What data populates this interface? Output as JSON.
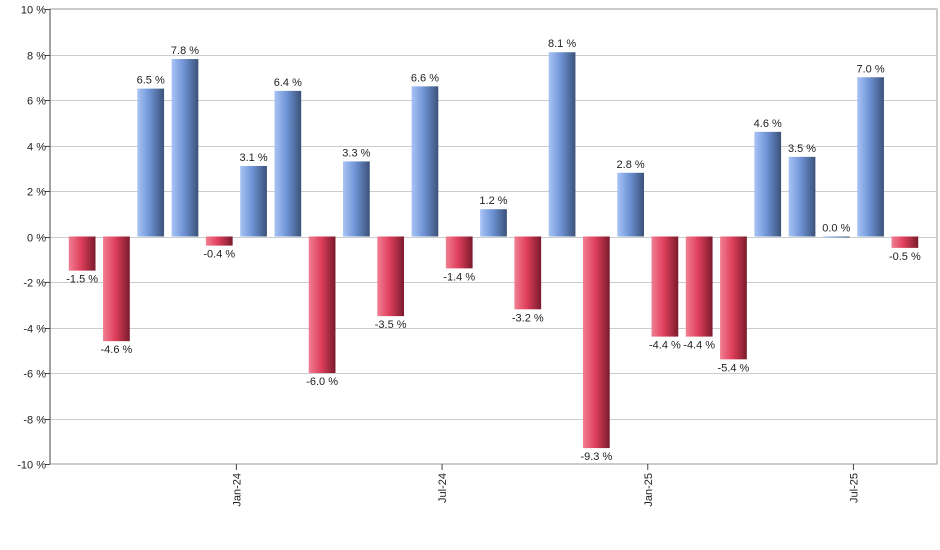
{
  "chart_data": {
    "type": "bar",
    "title": "",
    "xlabel": "",
    "ylabel": "",
    "ylim": [
      -10,
      10
    ],
    "yticks": [
      10,
      8,
      6,
      4,
      2,
      0,
      -2,
      -4,
      -6,
      -8,
      -10
    ],
    "ytick_suffix": " %",
    "grid": true,
    "legend": "none",
    "x_tick_labels": [
      {
        "label": "Jan-24",
        "after_bar_index": 4
      },
      {
        "label": "Jul-24",
        "after_bar_index": 10
      },
      {
        "label": "Jan-25",
        "after_bar_index": 16
      },
      {
        "label": "Jul-25",
        "after_bar_index": 22
      }
    ],
    "values": [
      -1.5,
      -4.6,
      6.5,
      7.8,
      -0.4,
      3.1,
      6.4,
      -6.0,
      3.3,
      -3.5,
      6.6,
      -1.4,
      1.2,
      -3.2,
      8.1,
      -9.3,
      2.8,
      -4.4,
      -4.4,
      -5.4,
      4.6,
      3.5,
      0.0,
      7.0,
      -0.5
    ],
    "labels": [
      "-1.5 %",
      "-4.6 %",
      "6.5 %",
      "7.8 %",
      "-0.4 %",
      "3.1 %",
      "6.4 %",
      "-6.0 %",
      "3.3 %",
      "-3.5 %",
      "6.6 %",
      "-1.4 %",
      "1.2 %",
      "-3.2 %",
      "8.1 %",
      "-9.3 %",
      "2.8 %",
      "-4.4 %",
      "-4.4 %",
      "-5.4 %",
      "4.6 %",
      "3.5 %",
      "0.0 %",
      "7.0 %",
      "-0.5 %"
    ],
    "colors": {
      "positive_light": "#a9c4f5",
      "positive_mid": "#6f94d6",
      "positive_dark": "#3b5279",
      "negative_light": "#f07f93",
      "negative_mid": "#e0405c",
      "negative_dark": "#7a1a2c",
      "grid": "#cccccc",
      "axis": "#444444"
    }
  }
}
